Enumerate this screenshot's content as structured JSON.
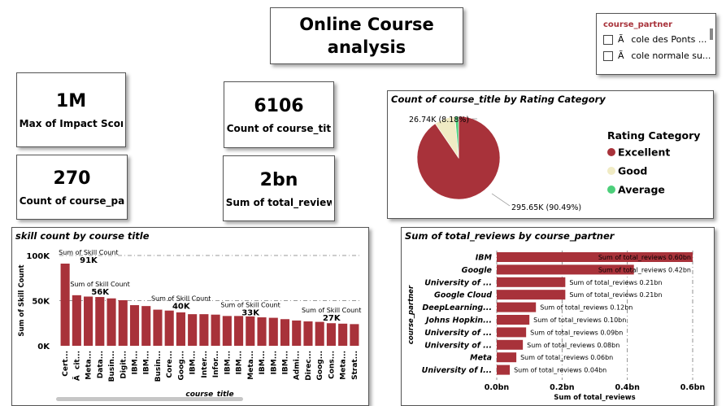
{
  "report_title": "Online Course analysis",
  "kpis": {
    "impact": {
      "value": "1M",
      "label": "Max of Impact Score"
    },
    "course_title": {
      "value": "6106",
      "label": "Count of course_title"
    },
    "course_partner": {
      "value": "270",
      "label": "Count of course_pa..."
    },
    "reviews": {
      "value": "2bn",
      "label": "Sum of total_reviews"
    }
  },
  "slicer": {
    "header": "course_partner",
    "options": [
      "Ãcole des Ponts ...",
      "Ãcole normale su..."
    ]
  },
  "colors": {
    "excellent": "#a8323a",
    "good": "#f0ebc4",
    "average": "#4ccf7a",
    "bar": "#a8323a"
  },
  "chart_data": [
    {
      "type": "pie",
      "title": "Count of course_title by Rating Category",
      "legend_title": "Rating Category",
      "legend_position": "right",
      "slices": [
        {
          "name": "Excellent",
          "value": 295650,
          "label": "295.65K (90.49%)"
        },
        {
          "name": "Good",
          "value": 26740,
          "label": "26.74K (8.18%)"
        },
        {
          "name": "Average",
          "value": 4350,
          "label": ""
        }
      ]
    },
    {
      "type": "bar",
      "title": "skill count by course title",
      "xlabel": "course_title",
      "ylabel": "Sum of Skill Count",
      "ylim": [
        0,
        100000
      ],
      "yticks": [
        "0K",
        "50K",
        "100K"
      ],
      "categories": [
        "Cert...",
        "Ãcit...",
        "Meta...",
        "Data...",
        "Busin...",
        "Digit...",
        "IBM...",
        "IBM...",
        "Busin...",
        "Core...",
        "Goog...",
        "IBM...",
        "Inter...",
        "Infor...",
        "IBM...",
        "IBM...",
        "Meta...",
        "IBM...",
        "IBM...",
        "IBM...",
        "Admi...",
        "Direc...",
        "Goog...",
        "Cons...",
        "Meta...",
        "Strat..."
      ],
      "values": [
        91000,
        56000,
        54500,
        54000,
        52500,
        50500,
        45000,
        44000,
        40000,
        39000,
        37000,
        35000,
        35000,
        34500,
        33000,
        33000,
        32500,
        31500,
        31000,
        29500,
        28000,
        27000,
        26500,
        25000,
        24500,
        24000
      ],
      "labels": [
        {
          "index": 0,
          "text": "91K",
          "caption": "Sum of Skill Count"
        },
        {
          "index": 1,
          "text": "56K",
          "caption": "Sum of Skill Count"
        },
        {
          "index": 8,
          "text": "40K",
          "caption": "Sum of Skill Count"
        },
        {
          "index": 14,
          "text": "33K",
          "caption": "Sum of Skill Count"
        },
        {
          "index": 21,
          "text": "27K",
          "caption": "Sum of Skill Count"
        }
      ]
    },
    {
      "type": "bar",
      "orientation": "horizontal",
      "title": "Sum of total_reviews by course_partner",
      "xlabel": "Sum of total_reviews",
      "ylabel": "course_partner",
      "xlim": [
        0,
        0.6
      ],
      "xticks": [
        "0.0bn",
        "0.2bn",
        "0.4bn",
        "0.6bn"
      ],
      "categories": [
        "IBM",
        "Google",
        "University of ...",
        "Google Cloud",
        "DeepLearning...",
        "Johns Hopkin...",
        "University of ...",
        "University of ...",
        "Meta",
        "University of I..."
      ],
      "values": [
        0.6,
        0.42,
        0.21,
        0.21,
        0.12,
        0.1,
        0.09,
        0.08,
        0.06,
        0.04
      ],
      "value_labels": [
        "Sum of total_reviews 0.60bn",
        "Sum of total_reviews 0.42bn",
        "Sum of total_reviews 0.21bn",
        "Sum of total_reviews 0.21bn",
        "Sum of total_reviews 0.12bn",
        "Sum of total_reviews 0.10bn",
        "Sum of total_reviews 0.09bn",
        "Sum of total_reviews 0.08bn",
        "Sum of total_reviews 0.06bn",
        "Sum of total_reviews 0.04bn"
      ]
    }
  ]
}
